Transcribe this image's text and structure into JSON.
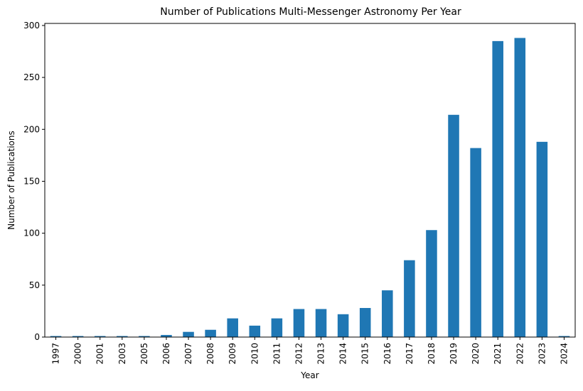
{
  "chart_data": {
    "type": "bar",
    "title": "Number of Publications Multi-Messenger Astronomy Per Year",
    "xlabel": "Year",
    "ylabel": "Number of Publications",
    "categories": [
      "1997",
      "2000",
      "2001",
      "2003",
      "2005",
      "2006",
      "2007",
      "2008",
      "2009",
      "2010",
      "2011",
      "2012",
      "2013",
      "2014",
      "2015",
      "2016",
      "2017",
      "2018",
      "2019",
      "2020",
      "2021",
      "2022",
      "2023",
      "2024"
    ],
    "values": [
      1,
      1,
      1,
      1,
      1,
      2,
      5,
      7,
      18,
      11,
      18,
      27,
      27,
      22,
      28,
      45,
      74,
      103,
      214,
      182,
      285,
      288,
      188,
      1
    ],
    "ylim": [
      0,
      302
    ],
    "yticks": [
      0,
      50,
      100,
      150,
      200,
      250,
      300
    ],
    "bar_color": "#1f77b4",
    "grid": false,
    "legend": "none"
  }
}
